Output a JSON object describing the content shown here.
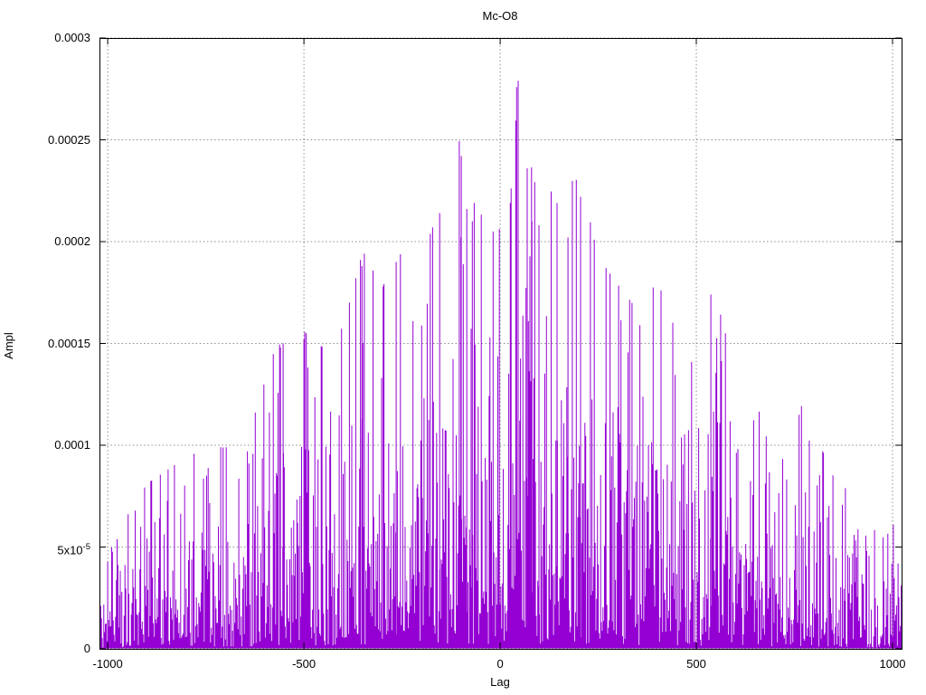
{
  "title": "Mc-O8",
  "axes": {
    "x": {
      "label": "Lag",
      "ticks": [
        {
          "value": -1000,
          "label": "-1000"
        },
        {
          "value": -500,
          "label": "-500"
        },
        {
          "value": 0,
          "label": "0"
        },
        {
          "value": 500,
          "label": "500"
        },
        {
          "value": 1000,
          "label": "1000"
        }
      ]
    },
    "y": {
      "label": "Ampl",
      "ticks": [
        {
          "value": 0,
          "label": "0",
          "sup": ""
        },
        {
          "value": 5e-05,
          "label": "5x10",
          "sup": "-5"
        },
        {
          "value": 0.0001,
          "label": "0.0001",
          "sup": ""
        },
        {
          "value": 0.00015,
          "label": "0.00015",
          "sup": ""
        },
        {
          "value": 0.0002,
          "label": "0.0002",
          "sup": ""
        },
        {
          "value": 0.00025,
          "label": "0.00025",
          "sup": ""
        },
        {
          "value": 0.0003,
          "label": "0.0003",
          "sup": ""
        }
      ]
    }
  },
  "chart_data": {
    "type": "impulse",
    "title": "Mc-O8",
    "xlabel": "Lag",
    "ylabel": "Ampl",
    "xlim": [
      -1021,
      1023
    ],
    "ylim": [
      0,
      0.0003
    ],
    "grid": true,
    "legend": false,
    "series_color": "#9400d3",
    "grid_color": "#8e8e8e",
    "border_color": "#000000",
    "background_color": "#ffffff",
    "n_points": 1022,
    "lag_step": 2,
    "seed": 19,
    "noise": {
      "scale": 0.36,
      "cap": 1.04,
      "floor": 0.012,
      "model": "amp = envelope(lag) * clamp(-ln(u)*scale, floor, cap)"
    },
    "envelope_keypoints": [
      [
        -1021,
        5.2e-05
      ],
      [
        -960,
        6e-05
      ],
      [
        -900,
        7.8e-05
      ],
      [
        -820,
        8.8e-05
      ],
      [
        -760,
        9.6e-05
      ],
      [
        -700,
        9.5e-05
      ],
      [
        -640,
        0.000102
      ],
      [
        -560,
        0.00015
      ],
      [
        -500,
        0.00015
      ],
      [
        -450,
        0.000142
      ],
      [
        -400,
        0.000152
      ],
      [
        -350,
        0.000188
      ],
      [
        -300,
        0.00017
      ],
      [
        -265,
        0.00019
      ],
      [
        -220,
        0.000175
      ],
      [
        -170,
        0.0002
      ],
      [
        -150,
        0.000214
      ],
      [
        -100,
        0.000242
      ],
      [
        -60,
        0.000205
      ],
      [
        -20,
        0.000205
      ],
      [
        20,
        0.00019
      ],
      [
        46,
        0.000279
      ],
      [
        70,
        0.000236
      ],
      [
        100,
        0.00021
      ],
      [
        145,
        0.000219
      ],
      [
        205,
        0.000222
      ],
      [
        250,
        0.000185
      ],
      [
        300,
        0.000172
      ],
      [
        350,
        0.00016
      ],
      [
        410,
        0.000176
      ],
      [
        470,
        0.00014
      ],
      [
        510,
        0.00013
      ],
      [
        540,
        0.000174
      ],
      [
        600,
        0.00013
      ],
      [
        660,
        0.000112
      ],
      [
        720,
        0.000105
      ],
      [
        770,
        0.000115
      ],
      [
        830,
        9e-05
      ],
      [
        880,
        8.2e-05
      ],
      [
        930,
        6e-05
      ],
      [
        980,
        5.2e-05
      ],
      [
        1023,
        6.5e-05
      ]
    ],
    "peaks": [
      [
        -560,
        0.000148
      ],
      [
        -553,
        0.00015
      ],
      [
        -352,
        0.000188
      ],
      [
        -265,
        0.00019
      ],
      [
        -154,
        0.000214
      ],
      [
        -99,
        0.000242
      ],
      [
        -85,
        0.000216
      ],
      [
        -71,
        0.00021
      ],
      [
        -18,
        0.000205
      ],
      [
        46,
        0.000279
      ],
      [
        69,
        0.000236
      ],
      [
        81,
        0.00021
      ],
      [
        99,
        0.000208
      ],
      [
        145,
        0.000219
      ],
      [
        173,
        0.000202
      ],
      [
        205,
        0.000222
      ],
      [
        410,
        0.000176
      ],
      [
        537,
        0.000174
      ],
      [
        762,
        0.000115
      ]
    ]
  }
}
